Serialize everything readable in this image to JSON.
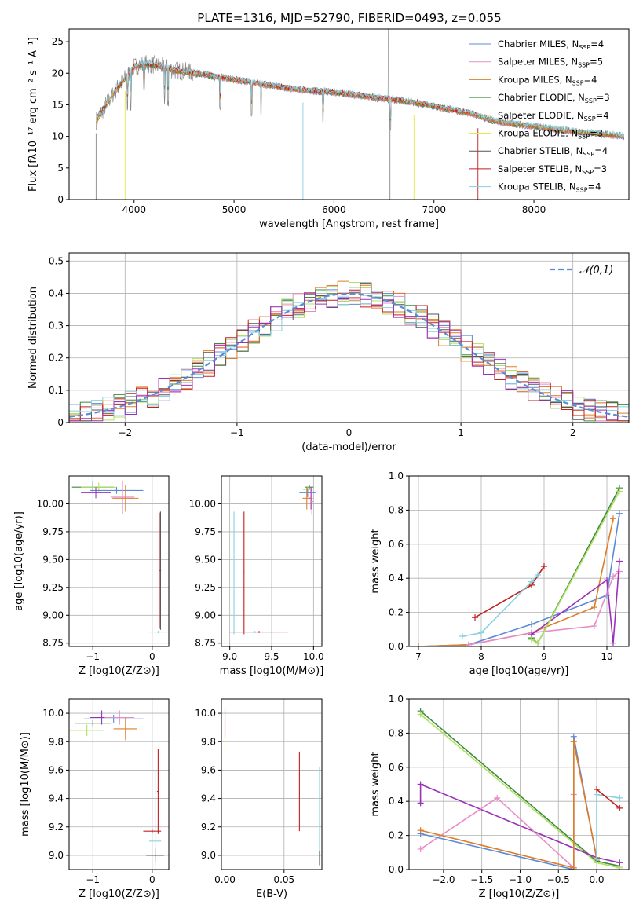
{
  "figure_title": "PLATE=1316, MJD=52790, FIBERID=0493, z=0.055",
  "colors": {
    "c0": "#5b8bd6",
    "c1": "#e88cc7",
    "c2": "#de7d28",
    "c3": "#3d8a3d",
    "c4": "#e36a2a",
    "c5": "#e8e84a",
    "c6": "#555555",
    "c7": "#c02020",
    "c8": "#86d1de",
    "c9": "#9a32b8",
    "c10": "#b0e060",
    "c11": "#a0a0a0"
  },
  "chart_data": [
    {
      "id": "spectrum",
      "type": "line",
      "xlabel": "wavelength [Angstrom, rest frame]",
      "ylabel": "Flux [fλ10⁻¹⁷ erg cm⁻² s⁻¹ A⁻¹]",
      "xlim": [
        3350,
        8950
      ],
      "ylim": [
        0,
        27
      ],
      "xticks": [
        4000,
        5000,
        6000,
        7000,
        8000
      ],
      "yticks": [
        0,
        5,
        10,
        15,
        20,
        25
      ],
      "legend": "top-right",
      "series": [
        {
          "name": "Chabrier MILES, N_SSP=4",
          "color": "#5b8bd6"
        },
        {
          "name": "Salpeter MILES, N_SSP=5",
          "color": "#e88cc7"
        },
        {
          "name": "Kroupa MILES, N_SSP=4",
          "color": "#de7d28"
        },
        {
          "name": "Chabrier ELODIE, N_SSP=3",
          "color": "#3d8a3d"
        },
        {
          "name": "Salpeter ELODIE, N_SSP=4",
          "color": "#e36a2a"
        },
        {
          "name": "Kroupa ELODIE, N_SSP=3",
          "color": "#e8e84a"
        },
        {
          "name": "Chabrier STELIB, N_SSP=4",
          "color": "#555555"
        },
        {
          "name": "Salpeter STELIB, N_SSP=3",
          "color": "#c02020"
        },
        {
          "name": "Kroupa STELIB, N_SSP=4",
          "color": "#86d1de"
        }
      ],
      "continuum": {
        "x": [
          3620,
          3700,
          3800,
          3900,
          4000,
          4100,
          4200,
          4300,
          4400,
          4500,
          4600,
          4700,
          4800,
          4900,
          5000,
          5200,
          5400,
          5600,
          5800,
          6000,
          6200,
          6400,
          6600,
          6800,
          7000,
          7200,
          7400,
          7600,
          7800,
          8000,
          8200,
          8400,
          8600,
          8800,
          8900
        ],
        "y": [
          12.5,
          14.5,
          17.0,
          19.0,
          21.0,
          21.5,
          21.3,
          21.0,
          20.5,
          20.3,
          20.0,
          19.8,
          19.5,
          19.3,
          19.0,
          18.5,
          18.0,
          17.5,
          17.2,
          17.0,
          16.6,
          16.2,
          15.8,
          15.4,
          14.8,
          14.2,
          13.5,
          12.5,
          12.0,
          11.6,
          11.2,
          10.8,
          10.5,
          10.2,
          10.0
        ]
      }
    },
    {
      "id": "residuals",
      "type": "line",
      "xlabel": "(data-model)/error",
      "ylabel": "Normed distribution",
      "xlim": [
        -2.5,
        2.5
      ],
      "ylim": [
        0,
        0.525
      ],
      "xticks": [
        -2,
        -1,
        0,
        1,
        2
      ],
      "yticks": [
        0.0,
        0.1,
        0.2,
        0.3,
        0.4,
        0.5
      ],
      "legend": "top-right",
      "reference": {
        "name": "𝒩(0,1)",
        "color": "#5b8bd6"
      }
    },
    {
      "id": "age_vs_Z",
      "type": "scatter",
      "xlabel": "Z [log10(Z/Z⊙)]",
      "ylabel": "age  [log10(age/yr)]",
      "xlim": [
        -1.4,
        0.28
      ],
      "ylim": [
        8.72,
        10.25
      ],
      "xticks": [
        -1,
        0
      ],
      "yticks": [
        8.75,
        9.0,
        9.25,
        9.5,
        9.75,
        10.0
      ],
      "points": [
        {
          "x": -1.0,
          "y": 10.15,
          "xerr": 0.35,
          "yerr": 0.05,
          "c": "#3d8a3d"
        },
        {
          "x": -0.9,
          "y": 10.15,
          "xerr": 0.3,
          "yerr": 0.04,
          "c": "#b0e060"
        },
        {
          "x": -0.6,
          "y": 10.12,
          "xerr": 0.45,
          "yerr": 0.03,
          "c": "#5b8bd6"
        },
        {
          "x": -0.95,
          "y": 10.1,
          "xerr": 0.25,
          "yerr": 0.05,
          "c": "#9a32b8"
        },
        {
          "x": -0.5,
          "y": 10.06,
          "xerr": 0.2,
          "yerr": 0.15,
          "c": "#e88cc7"
        },
        {
          "x": -0.45,
          "y": 10.05,
          "xerr": 0.22,
          "yerr": 0.12,
          "c": "#de7d28"
        },
        {
          "x": 0.12,
          "y": 9.4,
          "xerr": 0.01,
          "yerr": 0.52,
          "c": "#c02020"
        },
        {
          "x": 0.14,
          "y": 9.4,
          "xerr": 0.01,
          "yerr": 0.53,
          "c": "#555555"
        },
        {
          "x": 0.1,
          "y": 8.85,
          "xerr": 0.15,
          "yerr": 0.01,
          "c": "#86d1de"
        }
      ]
    },
    {
      "id": "age_vs_mass",
      "type": "scatter",
      "xlabel": "mass [log10(M/M⊙)]",
      "ylabel": "",
      "xlim": [
        8.9,
        10.1
      ],
      "ylim": [
        8.72,
        10.25
      ],
      "xticks": [
        9.0,
        9.5,
        10.0
      ],
      "yticks": [
        8.75,
        9.0,
        9.25,
        9.5,
        9.75,
        10.0
      ],
      "points": [
        {
          "x": 9.95,
          "y": 10.15,
          "xerr": 0.05,
          "yerr": 0.02,
          "c": "#3d8a3d"
        },
        {
          "x": 9.93,
          "y": 10.13,
          "xerr": 0.06,
          "yerr": 0.02,
          "c": "#b0e060"
        },
        {
          "x": 9.93,
          "y": 10.1,
          "xerr": 0.1,
          "yerr": 0.04,
          "c": "#5b8bd6"
        },
        {
          "x": 9.97,
          "y": 10.05,
          "xerr": 0.02,
          "yerr": 0.1,
          "c": "#9a32b8"
        },
        {
          "x": 9.92,
          "y": 10.05,
          "xerr": 0.05,
          "yerr": 0.1,
          "c": "#de7d28"
        },
        {
          "x": 9.98,
          "y": 10.02,
          "xerr": 0.02,
          "yerr": 0.12,
          "c": "#e88cc7"
        },
        {
          "x": 9.17,
          "y": 9.38,
          "xerr": 0.01,
          "yerr": 0.55,
          "c": "#c02020"
        },
        {
          "x": 9.05,
          "y": 9.38,
          "xerr": 0.01,
          "yerr": 0.55,
          "c": "#86d1de"
        },
        {
          "x": 9.35,
          "y": 8.85,
          "xerr": 0.35,
          "yerr": 0.01,
          "c": "#c02020"
        },
        {
          "x": 9.3,
          "y": 8.85,
          "xerr": 0.25,
          "yerr": 0.01,
          "c": "#86d1de"
        }
      ]
    },
    {
      "id": "weight_vs_age",
      "type": "line",
      "xlabel": "age  [log10(age/yr)]",
      "ylabel": "mass weight",
      "xlim": [
        6.85,
        10.35
      ],
      "ylim": [
        0,
        1.0
      ],
      "xticks": [
        7,
        8,
        9,
        10
      ],
      "yticks": [
        0.0,
        0.2,
        0.4,
        0.6,
        0.8,
        1.0
      ],
      "series": [
        {
          "c": "#c02020",
          "x": [
            7.9,
            8.8,
            9.0
          ],
          "y": [
            0.17,
            0.36,
            0.47
          ]
        },
        {
          "c": "#86d1de",
          "x": [
            7.7,
            8.0,
            8.8,
            8.9
          ],
          "y": [
            0.06,
            0.08,
            0.38,
            0.42
          ]
        },
        {
          "c": "#5b8bd6",
          "x": [
            7.0,
            7.8,
            8.8,
            10.0,
            10.2
          ],
          "y": [
            0.0,
            0.01,
            0.13,
            0.3,
            0.78
          ]
        },
        {
          "c": "#de7d28",
          "x": [
            7.0,
            7.8,
            8.8,
            9.8,
            10.1
          ],
          "y": [
            0.0,
            0.01,
            0.08,
            0.23,
            0.75
          ]
        },
        {
          "c": "#e88cc7",
          "x": [
            7.8,
            8.8,
            9.8,
            10.1,
            10.2
          ],
          "y": [
            0.01,
            0.08,
            0.12,
            0.41,
            0.44
          ]
        },
        {
          "c": "#9a32b8",
          "x": [
            8.8,
            10.0,
            10.1,
            10.2
          ],
          "y": [
            0.07,
            0.39,
            0.02,
            0.5
          ]
        },
        {
          "c": "#3d8a3d",
          "x": [
            8.8,
            8.9,
            10.2
          ],
          "y": [
            0.05,
            0.02,
            0.93
          ]
        },
        {
          "c": "#b0e060",
          "x": [
            8.8,
            8.9,
            10.2
          ],
          "y": [
            0.04,
            0.02,
            0.91
          ]
        }
      ]
    },
    {
      "id": "mass_vs_Z",
      "type": "scatter",
      "xlabel": "Z [log10(Z/Z⊙)]",
      "ylabel": "mass [log10(M/M⊙)]",
      "xlim": [
        -1.4,
        0.28
      ],
      "ylim": [
        8.9,
        10.1
      ],
      "xticks": [
        -1,
        0
      ],
      "yticks": [
        9.0,
        9.2,
        9.4,
        9.6,
        9.8,
        10.0
      ],
      "points": [
        {
          "x": -1.0,
          "y": 9.93,
          "xerr": 0.3,
          "yerr": 0.02,
          "c": "#3d8a3d"
        },
        {
          "x": -1.1,
          "y": 9.88,
          "xerr": 0.3,
          "yerr": 0.04,
          "c": "#b0e060"
        },
        {
          "x": -0.65,
          "y": 9.96,
          "xerr": 0.5,
          "yerr": 0.03,
          "c": "#5b8bd6"
        },
        {
          "x": -0.85,
          "y": 9.97,
          "xerr": 0.2,
          "yerr": 0.05,
          "c": "#9a32b8"
        },
        {
          "x": -0.55,
          "y": 9.97,
          "xerr": 0.25,
          "yerr": 0.05,
          "c": "#e88cc7"
        },
        {
          "x": -0.45,
          "y": 9.89,
          "xerr": 0.2,
          "yerr": 0.08,
          "c": "#de7d28"
        },
        {
          "x": 0.1,
          "y": 9.45,
          "xerr": 0.02,
          "yerr": 0.3,
          "c": "#c02020"
        },
        {
          "x": 0.0,
          "y": 9.17,
          "xerr": 0.15,
          "yerr": 0.01,
          "c": "#c02020"
        },
        {
          "x": 0.05,
          "y": 9.1,
          "xerr": 0.1,
          "yerr": 0.5,
          "c": "#86d1de"
        },
        {
          "x": 0.05,
          "y": 9.0,
          "xerr": 0.15,
          "yerr": 0.05,
          "c": "#555555"
        }
      ]
    },
    {
      "id": "mass_vs_ebv",
      "type": "scatter",
      "xlabel": "E(B-V)",
      "ylabel": "",
      "xlim": [
        -0.003,
        0.082
      ],
      "ylim": [
        8.9,
        10.1
      ],
      "xticks": [
        0.0,
        0.05
      ],
      "yticks": [
        9.0,
        9.2,
        9.4,
        9.6,
        9.8,
        10.0
      ],
      "points": [
        {
          "x": 0.0,
          "y": 9.93,
          "xerr": 0,
          "yerr": 0.1,
          "c": "#9a32b8"
        },
        {
          "x": 0.0,
          "y": 9.85,
          "xerr": 0,
          "yerr": 0.1,
          "c": "#e8e84a"
        },
        {
          "x": 0.063,
          "y": 9.45,
          "xerr": 0,
          "yerr": 0.28,
          "c": "#c02020"
        },
        {
          "x": 0.08,
          "y": 9.3,
          "xerr": 0,
          "yerr": 0.32,
          "c": "#86d1de"
        },
        {
          "x": 0.08,
          "y": 8.98,
          "xerr": 0,
          "yerr": 0.05,
          "c": "#555555"
        }
      ]
    },
    {
      "id": "weight_vs_Z",
      "type": "line",
      "xlabel": "Z [log10(Z/Z⊙)]",
      "ylabel": "mass weight",
      "xlim": [
        -2.45,
        0.42
      ],
      "ylim": [
        0,
        1.0
      ],
      "xticks": [
        -2.0,
        -1.5,
        -1.0,
        -0.5,
        0.0
      ],
      "yticks": [
        0.0,
        0.2,
        0.4,
        0.6,
        0.8,
        1.0
      ],
      "series": [
        {
          "c": "#3d8a3d",
          "x": [
            -2.3,
            0.0,
            0.3
          ],
          "y": [
            0.93,
            0.05,
            0.02
          ]
        },
        {
          "c": "#b0e060",
          "x": [
            -2.3,
            0.0,
            0.3
          ],
          "y": [
            0.91,
            0.04,
            0.01
          ]
        },
        {
          "c": "#9a32b8",
          "x": [
            -2.3,
            -2.3,
            0.0,
            0.3
          ],
          "y": [
            0.39,
            0.5,
            0.07,
            0.04
          ]
        },
        {
          "c": "#e88cc7",
          "x": [
            -2.3,
            -1.3,
            -0.3,
            -0.3
          ],
          "y": [
            0.12,
            0.42,
            0.01,
            0.44
          ]
        },
        {
          "c": "#5b8bd6",
          "x": [
            -2.3,
            -0.3,
            -0.3,
            0.0
          ],
          "y": [
            0.21,
            0.0,
            0.78,
            0.06
          ]
        },
        {
          "c": "#de7d28",
          "x": [
            -2.3,
            -0.3,
            -0.3,
            0.0
          ],
          "y": [
            0.23,
            0.01,
            0.75,
            0.07
          ]
        },
        {
          "c": "#86d1de",
          "x": [
            0.0,
            0.0,
            0.3
          ],
          "y": [
            0.06,
            0.44,
            0.42
          ]
        },
        {
          "c": "#c02020",
          "x": [
            0.0,
            0.3
          ],
          "y": [
            0.47,
            0.36
          ]
        }
      ]
    }
  ]
}
